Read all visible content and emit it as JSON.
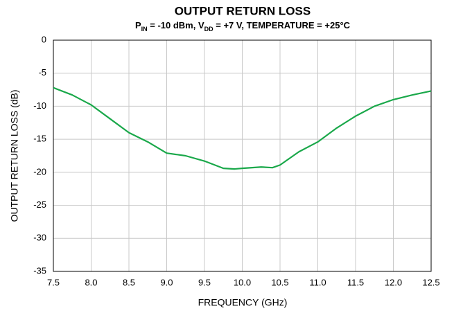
{
  "chart_data": {
    "type": "line",
    "title": "OUTPUT RETURN LOSS",
    "subtitle": [
      {
        "text": "P"
      },
      {
        "text": "IN",
        "sub": true
      },
      {
        "text": " = -10 dBm, V"
      },
      {
        "text": "DD",
        "sub": true
      },
      {
        "text": " = +7 V, TEMPERATURE = +25°C"
      }
    ],
    "x_label": "FREQUENCY (GHz)",
    "y_label": "OUTPUT  RETURN LOSS (dB)",
    "xlim": [
      7.5,
      12.5
    ],
    "ylim": [
      -35,
      0
    ],
    "xticks": [
      7.5,
      {
        "value": 8,
        "label": "8.0"
      },
      8.5,
      {
        "value": 9,
        "label": "9.0"
      },
      9.5,
      {
        "value": 10,
        "label": "10.0"
      },
      10.5,
      {
        "value": 11,
        "label": "11.0"
      },
      11.5,
      {
        "value": 12,
        "label": "12.0"
      },
      12.5
    ],
    "yticks": [
      0,
      -5,
      -10,
      -15,
      -20,
      -25,
      -30,
      -35
    ],
    "grid": true,
    "series": [
      {
        "color": "#1aa84a",
        "x": [
          7.5,
          7.75,
          8.0,
          8.25,
          8.5,
          8.75,
          9.0,
          9.25,
          9.5,
          9.75,
          9.9,
          10.0,
          10.25,
          10.4,
          10.5,
          10.75,
          11.0,
          11.25,
          11.5,
          11.75,
          12.0,
          12.25,
          12.5
        ],
        "values": [
          -7.2,
          -8.3,
          -9.8,
          -11.9,
          -14.0,
          -15.4,
          -17.1,
          -17.5,
          -18.3,
          -19.4,
          -19.5,
          -19.4,
          -19.2,
          -19.3,
          -18.9,
          -16.9,
          -15.4,
          -13.3,
          -11.5,
          -10.0,
          -9.0,
          -8.3,
          -7.7
        ]
      }
    ]
  }
}
